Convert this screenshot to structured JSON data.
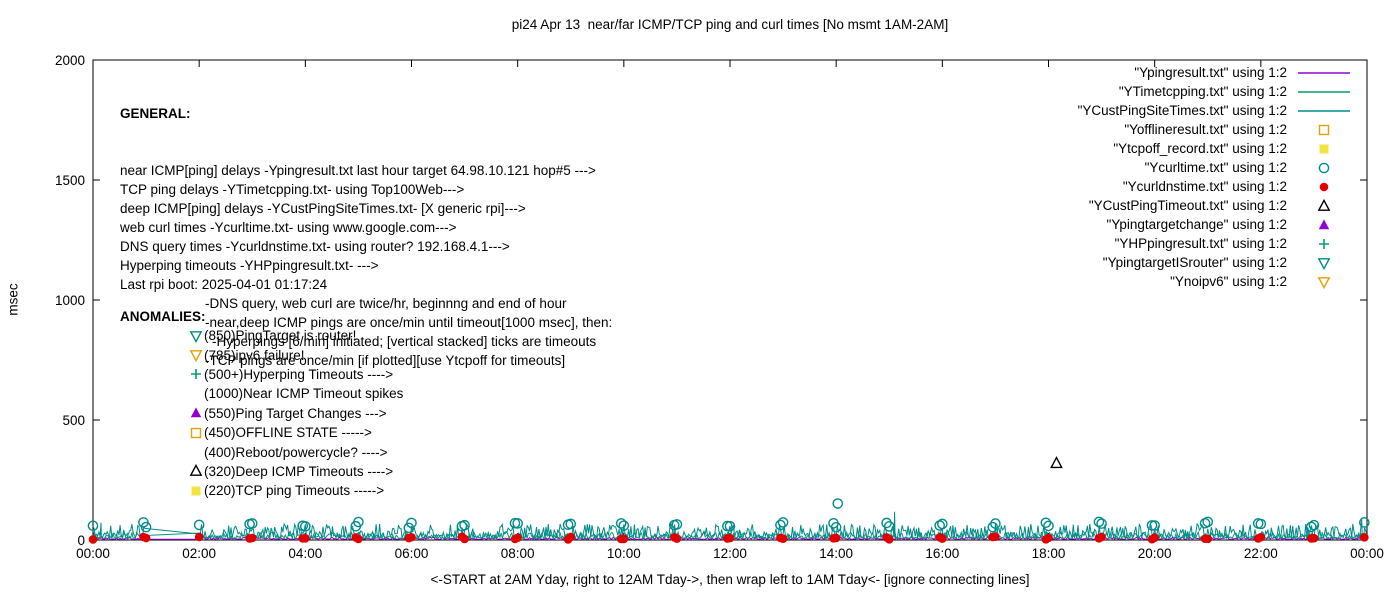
{
  "chart_data": {
    "type": "line",
    "title": "pi24 Apr 13  near/far ICMP/TCP ping and curl times [No msmt 1AM-2AM]",
    "xlabel": "<-START at 2AM Yday, right to 12AM Tday->, then wrap left to 1AM Tday<- [ignore connecting lines]",
    "ylabel": "msec",
    "xlim": [
      0,
      24
    ],
    "ylim": [
      0,
      2000
    ],
    "grid": false,
    "legend_position": "top-right",
    "x_ticks": [
      {
        "pos": 0,
        "label": "00:00"
      },
      {
        "pos": 2,
        "label": "02:00"
      },
      {
        "pos": 4,
        "label": "04:00"
      },
      {
        "pos": 6,
        "label": "06:00"
      },
      {
        "pos": 8,
        "label": "08:00"
      },
      {
        "pos": 10,
        "label": "10:00"
      },
      {
        "pos": 12,
        "label": "12:00"
      },
      {
        "pos": 14,
        "label": "14:00"
      },
      {
        "pos": 16,
        "label": "16:00"
      },
      {
        "pos": 18,
        "label": "18:00"
      },
      {
        "pos": 20,
        "label": "20:00"
      },
      {
        "pos": 22,
        "label": "22:00"
      },
      {
        "pos": 24,
        "label": "00:00"
      }
    ],
    "y_ticks": [
      0,
      500,
      1000,
      1500,
      2000
    ],
    "gap_hours": [
      1,
      2
    ],
    "series": [
      {
        "name": "\"Ypingresult.txt\" using 1:2",
        "legend_style": "line",
        "color": "#9400d3",
        "line": {
          "base": 3,
          "jitter": 9,
          "seed": 101
        }
      },
      {
        "name": "\"YTimetcpping.txt\" using 1:2",
        "legend_style": "line",
        "color": "#009e73",
        "line": {
          "base": 7,
          "jitter": 26,
          "seed": 202
        }
      },
      {
        "name": "\"YCustPingSiteTimes.txt\" using 1:2",
        "legend_style": "line",
        "color": "#008b8b",
        "line": {
          "base": 9,
          "jitter": 58,
          "seed": 303
        },
        "spikes": [
          {
            "x": 0.15,
            "y": 72
          },
          {
            "x": 15.1,
            "y": 118
          },
          {
            "x": 23.9,
            "y": 85
          }
        ]
      },
      {
        "name": "\"Yofflineresult.txt\" using 1:2",
        "legend_style": "point",
        "marker": "square-open",
        "color": "#e69f00",
        "points": []
      },
      {
        "name": "\"Ytcpoff_record.txt\" using 1:2",
        "legend_style": "point",
        "marker": "square-filled",
        "color": "#f0e442",
        "points": []
      },
      {
        "name": "\"Ycurltime.txt\" using 1:2",
        "legend_style": "point",
        "marker": "circle-open",
        "color": "#008b8b",
        "schedule": {
          "minutes": [
            0,
            57
          ],
          "base": 50,
          "jitter": 26,
          "seed": 404
        },
        "points": [
          {
            "x": 14.03,
            "y": 152
          }
        ]
      },
      {
        "name": "\"Ycurldnstime.txt\" using 1:2",
        "legend_style": "point",
        "marker": "circle-filled",
        "color": "#e00000",
        "schedule": {
          "minutes": [
            0,
            57
          ],
          "base": 2,
          "jitter": 12,
          "seed": 505
        },
        "points": []
      },
      {
        "name": "\"YCustPingTimeout.txt\" using 1:2",
        "legend_style": "point",
        "marker": "triangle-up-open",
        "color": "#000000",
        "points": [
          {
            "x": 18.15,
            "y": 320
          }
        ]
      },
      {
        "name": "\"Ypingtargetchange\" using 1:2",
        "legend_style": "point",
        "marker": "triangle-up-filled",
        "color": "#9400d3",
        "points": []
      },
      {
        "name": "\"YHPpingresult.txt\" using 1:2",
        "legend_style": "point",
        "marker": "plus",
        "color": "#009e73",
        "points": []
      },
      {
        "name": "\"YpingtargetISrouter\" using 1:2",
        "legend_style": "point",
        "marker": "triangle-down-open",
        "color": "#008b8b",
        "points": []
      },
      {
        "name": "\"Ynoipv6\" using 1:2",
        "legend_style": "point",
        "marker": "triangle-down-open",
        "color": "#e69f00",
        "points": []
      }
    ],
    "annotations": {
      "general": {
        "heading": "GENERAL:",
        "lines": [
          {
            "text": "near ICMP[ping] delays -Ypingresult.txt last hour target 64.98.10.121 hop#5 --->",
            "indent": 0
          },
          {
            "text": "TCP ping delays -YTimetcpping.txt- using Top100Web--->",
            "indent": 0
          },
          {
            "text": "deep ICMP[ping] delays -YCustPingSiteTimes.txt- [X generic rpi]--->",
            "indent": 0
          },
          {
            "text": "web curl times -Ycurltime.txt- using www.google.com--->",
            "indent": 0
          },
          {
            "text": "DNS query times -Ycurldnstime.txt- using router? 192.168.4.1--->",
            "indent": 0
          },
          {
            "text": "Hyperping timeouts -YHPpingresult.txt- --->",
            "indent": 0
          },
          {
            "text": "Last rpi boot: 2025-04-01 01:17:24",
            "indent": 0
          },
          {
            "text": "-DNS query, web curl are twice/hr, beginnng and end of hour",
            "indent": 1
          },
          {
            "text": "-near,deep ICMP pings are once/min until timeout[1000 msec], then:",
            "indent": 1
          },
          {
            "text": "-Hyperpings [6/min] initiated; [vertical stacked] ticks are timeouts",
            "indent": 2
          },
          {
            "text": "-TCP pings are once/min [if plotted][use Ytcpoff for timeouts]",
            "indent": 1
          }
        ]
      },
      "anomalies": {
        "heading": "ANOMALIES:",
        "items": [
          {
            "marker": "triangle-down-open",
            "color": "#008b8b",
            "text": "(850)PingTarget is router!"
          },
          {
            "marker": "triangle-down-open",
            "color": "#e69f00",
            "text": "(785)ipv6 failure!"
          },
          {
            "marker": "plus",
            "color": "#009e73",
            "text": "(500+)Hyperping Timeouts ---->"
          },
          {
            "marker": null,
            "color": null,
            "text": "(1000)Near ICMP Timeout spikes"
          },
          {
            "marker": "triangle-up-filled",
            "color": "#9400d3",
            "text": "(550)Ping Target Changes --->"
          },
          {
            "marker": "square-open",
            "color": "#e69f00",
            "text": "(450)OFFLINE STATE ----->"
          },
          {
            "marker": null,
            "color": null,
            "text": "(400)Reboot/powercycle? ---->"
          },
          {
            "marker": "triangle-up-open",
            "color": "#000000",
            "text": "(320)Deep ICMP Timeouts ---->"
          },
          {
            "marker": "square-filled",
            "color": "#f0e442",
            "text": "(220)TCP ping Timeouts ----->"
          }
        ]
      }
    }
  }
}
